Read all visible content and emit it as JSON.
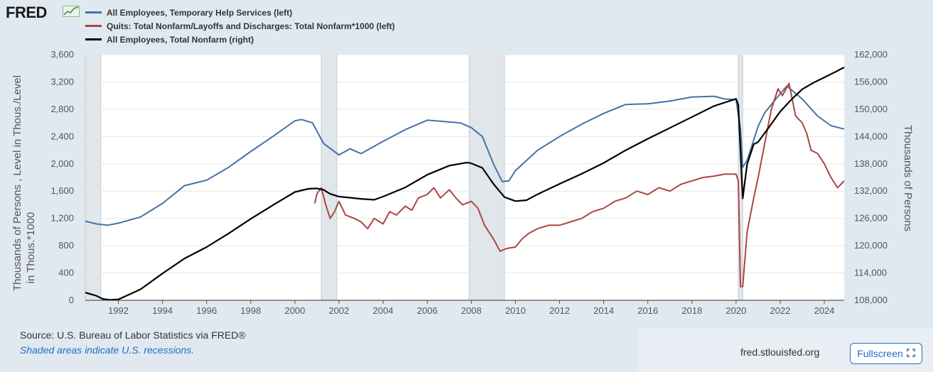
{
  "header": {
    "logo_text": "FRED",
    "logo_icon": "chart-line-icon"
  },
  "legend": [
    {
      "label": "All Employees, Temporary Help Services (left)",
      "color": "#4572a7"
    },
    {
      "label": "Quits: Total Nonfarm/Layoffs and Discharges: Total Nonfarm*1000 (left)",
      "color": "#aa4643"
    },
    {
      "label": "All Employees, Total Nonfarm (right)",
      "color": "#000000"
    }
  ],
  "footer": {
    "source": "Source: U.S. Bureau of Labor Statistics via FRED®",
    "shading_note": "Shaded areas indicate U.S. recessions.",
    "url": "fred.stlouisfed.org",
    "fullscreen_label": "Fullscreen",
    "fullscreen_icon": "expand-icon"
  },
  "chart_data": {
    "type": "line",
    "x_range": [
      1990.5,
      2024.9
    ],
    "left_axis": {
      "title_line1": "Thousands of Persons , Level in Thous./Level",
      "title_line2": "in Thous.*1000",
      "ylim": [
        0,
        3600
      ],
      "ticks": [
        "0",
        "400",
        "800",
        "1,200",
        "1,600",
        "2,000",
        "2,400",
        "2,800",
        "3,200",
        "3,600"
      ],
      "tick_values": [
        0,
        400,
        800,
        1200,
        1600,
        2000,
        2400,
        2800,
        3200,
        3600
      ]
    },
    "right_axis": {
      "title": "Thousands of Persons",
      "ylim": [
        108000,
        162000
      ],
      "ticks": [
        "108,000",
        "114,000",
        "120,000",
        "126,000",
        "132,000",
        "138,000",
        "144,000",
        "150,000",
        "156,000",
        "162,000"
      ],
      "tick_values": [
        108000,
        114000,
        120000,
        126000,
        132000,
        138000,
        144000,
        150000,
        156000,
        162000
      ]
    },
    "x_ticks": [
      1992,
      1994,
      1996,
      1998,
      2000,
      2002,
      2004,
      2006,
      2008,
      2010,
      2012,
      2014,
      2016,
      2018,
      2020,
      2022,
      2024
    ],
    "recessions": [
      [
        1990.5,
        1991.2
      ],
      [
        2001.2,
        2001.9
      ],
      [
        2007.9,
        2009.5
      ],
      [
        2020.1,
        2020.3
      ]
    ],
    "series": [
      {
        "name": "All Employees, Temporary Help Services (left)",
        "axis": "left",
        "color": "#4572a7",
        "x": [
          1990.5,
          1991.0,
          1991.5,
          1992.0,
          1993.0,
          1994.0,
          1995.0,
          1996.0,
          1997.0,
          1998.0,
          1999.0,
          2000.0,
          2000.3,
          2000.8,
          2001.3,
          2002.0,
          2002.5,
          2003.0,
          2004.0,
          2005.0,
          2006.0,
          2006.8,
          2007.5,
          2008.0,
          2008.5,
          2009.0,
          2009.4,
          2009.7,
          2010.0,
          2011.0,
          2012.0,
          2013.0,
          2014.0,
          2015.0,
          2016.0,
          2017.0,
          2018.0,
          2019.0,
          2019.5,
          2020.0,
          2020.2,
          2020.3,
          2020.5,
          2021.0,
          2021.3,
          2021.8,
          2022.3,
          2023.0,
          2023.7,
          2024.3,
          2024.9
        ],
        "y": [
          1160,
          1120,
          1100,
          1130,
          1220,
          1420,
          1680,
          1760,
          1950,
          2180,
          2400,
          2630,
          2650,
          2600,
          2300,
          2130,
          2220,
          2150,
          2330,
          2500,
          2640,
          2620,
          2600,
          2530,
          2400,
          2000,
          1740,
          1750,
          1900,
          2200,
          2400,
          2580,
          2740,
          2870,
          2880,
          2920,
          2980,
          2990,
          2950,
          2940,
          2500,
          1950,
          2050,
          2550,
          2750,
          2950,
          3140,
          2950,
          2700,
          2560,
          2510
        ]
      },
      {
        "name": "Quits: Total Nonfarm/Layoffs and Discharges: Total Nonfarm*1000 (left)",
        "axis": "left",
        "color": "#aa4643",
        "x": [
          2000.9,
          2001.0,
          2001.2,
          2001.4,
          2001.6,
          2001.8,
          2002.0,
          2002.3,
          2002.7,
          2003.0,
          2003.3,
          2003.6,
          2004.0,
          2004.3,
          2004.6,
          2005.0,
          2005.3,
          2005.6,
          2006.0,
          2006.3,
          2006.6,
          2007.0,
          2007.3,
          2007.6,
          2008.0,
          2008.3,
          2008.6,
          2009.0,
          2009.3,
          2009.6,
          2010.0,
          2010.3,
          2010.6,
          2011.0,
          2011.5,
          2012.0,
          2012.5,
          2013.0,
          2013.5,
          2014.0,
          2014.5,
          2015.0,
          2015.5,
          2016.0,
          2016.5,
          2017.0,
          2017.5,
          2018.0,
          2018.5,
          2019.0,
          2019.5,
          2020.0,
          2020.1,
          2020.2,
          2020.3,
          2020.5,
          2020.8,
          2021.0,
          2021.3,
          2021.6,
          2021.9,
          2022.1,
          2022.4,
          2022.7,
          2023.0,
          2023.2,
          2023.4,
          2023.7,
          2024.0,
          2024.3,
          2024.6,
          2024.9
        ],
        "y": [
          1420,
          1560,
          1650,
          1400,
          1200,
          1300,
          1450,
          1250,
          1200,
          1150,
          1050,
          1200,
          1120,
          1300,
          1250,
          1380,
          1320,
          1500,
          1550,
          1650,
          1500,
          1620,
          1500,
          1400,
          1450,
          1350,
          1100,
          900,
          720,
          760,
          780,
          900,
          980,
          1050,
          1100,
          1100,
          1150,
          1200,
          1300,
          1350,
          1450,
          1500,
          1600,
          1550,
          1650,
          1600,
          1700,
          1750,
          1800,
          1820,
          1850,
          1850,
          1750,
          200,
          200,
          1000,
          1500,
          1800,
          2300,
          2800,
          3100,
          3000,
          3180,
          2700,
          2600,
          2450,
          2200,
          2150,
          2000,
          1800,
          1650,
          1750
        ]
      },
      {
        "name": "All Employees, Total Nonfarm (right)",
        "axis": "right",
        "color": "#000000",
        "x": [
          1990.5,
          1991.0,
          1991.3,
          1991.6,
          1992.0,
          1993.0,
          1994.0,
          1995.0,
          1996.0,
          1997.0,
          1998.0,
          1999.0,
          2000.0,
          2000.6,
          2001.0,
          2001.3,
          2001.6,
          2002.0,
          2003.0,
          2003.6,
          2004.0,
          2005.0,
          2006.0,
          2007.0,
          2007.8,
          2008.0,
          2008.5,
          2009.0,
          2009.5,
          2010.0,
          2010.5,
          2011.0,
          2012.0,
          2013.0,
          2014.0,
          2015.0,
          2016.0,
          2017.0,
          2018.0,
          2019.0,
          2020.0,
          2020.1,
          2020.3,
          2020.5,
          2020.8,
          2021.0,
          2021.5,
          2022.0,
          2022.5,
          2023.0,
          2023.5,
          2024.0,
          2024.5,
          2024.9
        ],
        "y": [
          109700,
          109000,
          108300,
          108100,
          108200,
          110400,
          113900,
          117200,
          119700,
          122700,
          125900,
          128900,
          131800,
          132500,
          132600,
          132300,
          131400,
          130800,
          130300,
          130100,
          130800,
          132800,
          135600,
          137600,
          138300,
          138100,
          137100,
          133600,
          130700,
          129800,
          130000,
          131300,
          133600,
          135800,
          138200,
          141000,
          143500,
          145900,
          148300,
          150700,
          152300,
          151000,
          130400,
          137900,
          142300,
          142800,
          146100,
          149500,
          152100,
          154400,
          155800,
          157000,
          158200,
          159200
        ]
      }
    ]
  }
}
